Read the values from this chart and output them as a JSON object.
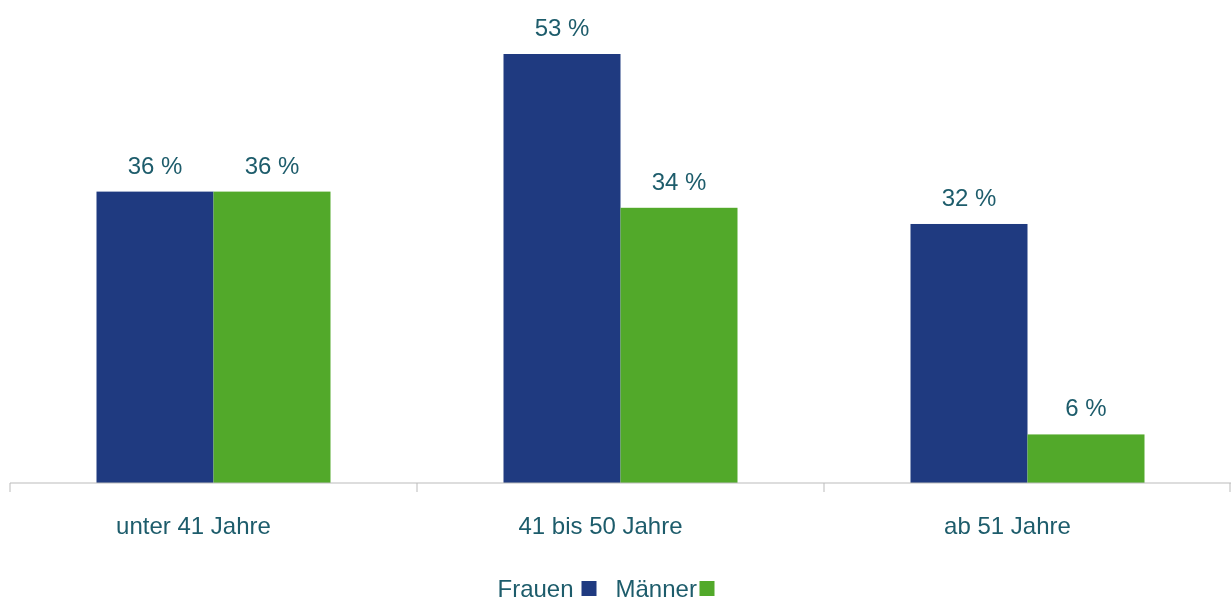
{
  "chart_data": {
    "type": "bar",
    "categories": [
      "unter 41 Jahre",
      "41 bis 50 Jahre",
      "ab 51 Jahre"
    ],
    "series": [
      {
        "name": "Frauen",
        "color": "#1f3a80",
        "values": [
          36,
          53,
          32
        ],
        "value_labels": [
          "36 %",
          "53 %",
          "32 %"
        ]
      },
      {
        "name": "Männer",
        "color": "#52a92a",
        "values": [
          36,
          34,
          6
        ],
        "value_labels": [
          "36 %",
          "34 %",
          "6 %"
        ]
      }
    ],
    "legend": "bottom",
    "grid": false
  }
}
